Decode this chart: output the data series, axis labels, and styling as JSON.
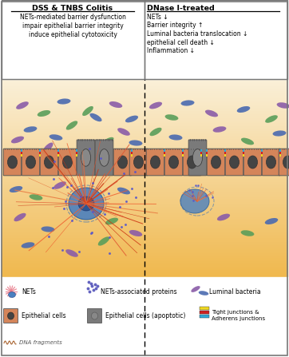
{
  "left_title": "DSS & TNBS Colitis",
  "right_title": "DNase I-treated",
  "left_text": [
    "NETs-mediated barrier dysfunction",
    "impair epithelial barrier integrity",
    "induce epithelial cytotoxicity"
  ],
  "right_text": [
    "NETs ↓",
    "Barrier integrity ↑",
    "Luminal bacteria translocation ↓",
    "epithelial cell death ↓",
    "Inflammation ↓"
  ],
  "epithelial_color": "#d4855a",
  "epithelial_apoptotic_color": "#7a7a7a",
  "nucleus_color": "#444444",
  "tight_junction_colors": [
    "#f0d820",
    "#d02020",
    "#30a8d8"
  ],
  "bacteria_purple": "#8a5ca8",
  "bacteria_green": "#5a9e5a",
  "bacteria_blue": "#4a6ab0",
  "nets_red": "#e05530",
  "nets_orange": "#e87840",
  "nets_dots": "#5555cc",
  "neutrophil_blue": "#3a6aaa",
  "neutrophil_light": "#6a9ad0"
}
